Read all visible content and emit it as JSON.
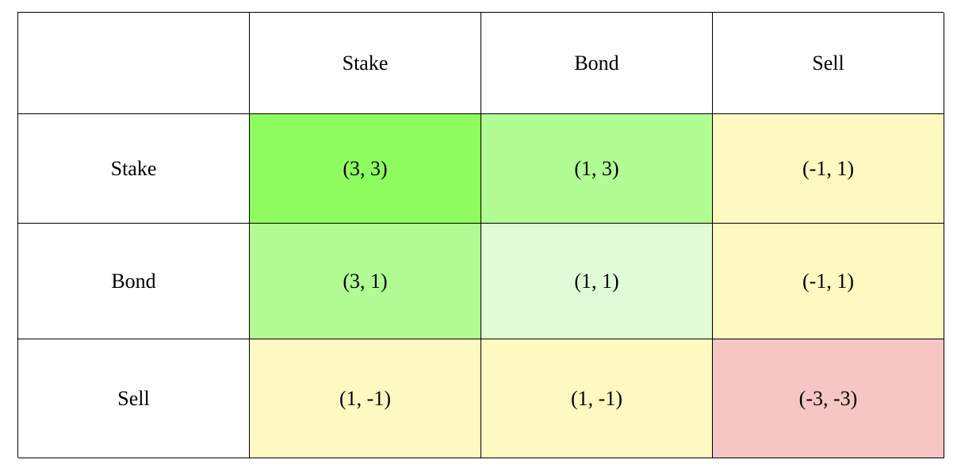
{
  "table": {
    "columns": [
      "Stake",
      "Bond",
      "Sell"
    ],
    "rows": [
      {
        "label": "Stake",
        "cells": [
          "(3, 3)",
          "(1, 3)",
          "(-1, 1)"
        ],
        "colors": [
          "#8ffc5f",
          "#b2fc94",
          "#fef9c0"
        ]
      },
      {
        "label": "Bond",
        "cells": [
          "(3, 1)",
          "(1, 1)",
          "(-1, 1)"
        ],
        "colors": [
          "#b2fc94",
          "#dffcd6",
          "#fef9c0"
        ]
      },
      {
        "label": "Sell",
        "cells": [
          "(1, -1)",
          "(1, -1)",
          "(-3, -3)"
        ],
        "colors": [
          "#fef9c0",
          "#fef9c0",
          "#f5c6c4"
        ]
      }
    ]
  }
}
